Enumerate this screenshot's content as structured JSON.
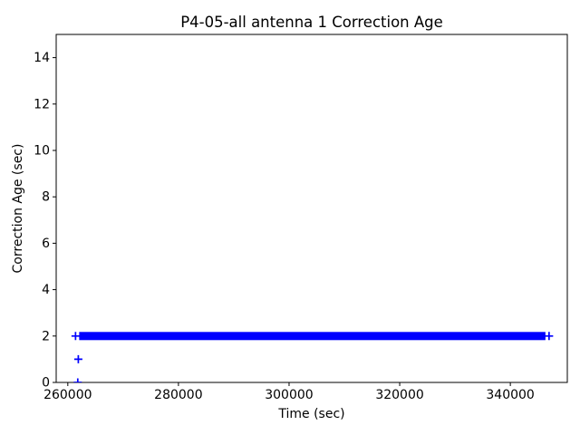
{
  "chart_data": {
    "type": "scatter",
    "title": "P4-05-all antenna 1 Correction Age",
    "xlabel": "Time (sec)",
    "ylabel": "Correction Age (sec)",
    "xlim": [
      257900,
      350300
    ],
    "ylim": [
      0,
      15
    ],
    "xticks": [
      260000,
      280000,
      300000,
      320000,
      340000
    ],
    "yticks": [
      0,
      2,
      4,
      6,
      8,
      10,
      12,
      14
    ],
    "grid": false,
    "legend": "none",
    "marker": "+",
    "marker_color": "#0000ff",
    "axis_color": "#000000",
    "background_color": "#ffffff",
    "series": [
      {
        "name": "antenna 1 correction age",
        "dense_band": {
          "y": 2,
          "x_start": 261400,
          "x_end": 347000
        },
        "sparse_points": [
          {
            "x": 261900,
            "y": 1
          },
          {
            "x": 261800,
            "y": 0
          }
        ]
      }
    ]
  }
}
